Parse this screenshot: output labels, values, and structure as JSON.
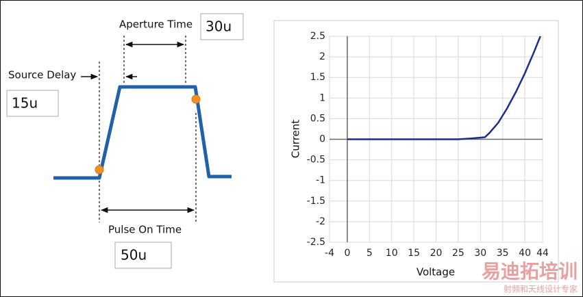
{
  "diagram": {
    "aperture_label": "Aperture Time",
    "aperture_value": "30u",
    "delay_label": "Source Delay",
    "delay_value": "15u",
    "pulse_label": "Pulse On Time",
    "pulse_value": "50u"
  },
  "chart_data": {
    "type": "line",
    "x_label": "Voltage",
    "y_label": "Current",
    "x": [
      0,
      25,
      28,
      31,
      32,
      34,
      36,
      38,
      40,
      42,
      43.5
    ],
    "series": [
      {
        "color": "#1a2f8a",
        "values": [
          0,
          0,
          0.02,
          0.05,
          0.15,
          0.4,
          0.75,
          1.15,
          1.6,
          2.1,
          2.5
        ]
      }
    ],
    "xlim": [
      -4,
      44
    ],
    "xticks": [
      -4,
      0,
      5,
      10,
      15,
      20,
      25,
      30,
      35,
      40,
      44
    ],
    "ylim": [
      -2.5,
      2.5
    ],
    "yticks": [
      -2.5,
      -2,
      -1.5,
      -1,
      -0.5,
      0,
      0.5,
      1,
      1.5,
      2,
      2.5
    ],
    "grid": true
  },
  "watermark": {
    "title": "易迪拓培训",
    "subtitle": "射频和天线设计专家"
  }
}
